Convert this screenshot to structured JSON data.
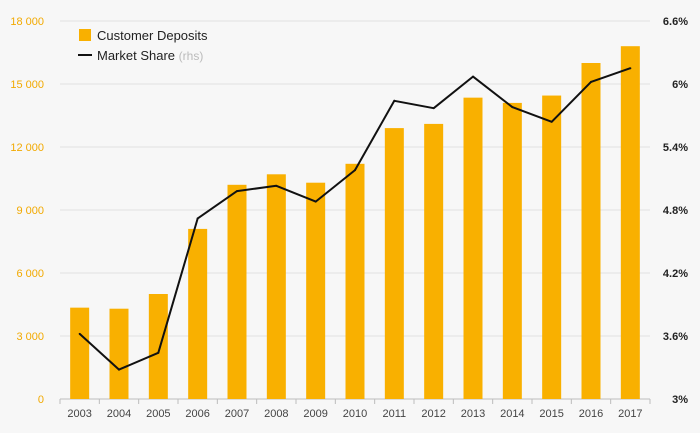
{
  "chart_data": {
    "type": "bar",
    "categories": [
      "2003",
      "2004",
      "2005",
      "2006",
      "2007",
      "2008",
      "2009",
      "2010",
      "2011",
      "2012",
      "2013",
      "2014",
      "2015",
      "2016",
      "2017"
    ],
    "series": [
      {
        "name": "Customer Deposits",
        "type": "bar",
        "axis": "left",
        "color": "#f9b000",
        "values": [
          4350,
          4300,
          5000,
          8100,
          10200,
          10700,
          10300,
          11200,
          12900,
          13100,
          14350,
          14100,
          14450,
          16000,
          16800
        ]
      },
      {
        "name": "Market Share",
        "type": "line",
        "axis": "right",
        "color": "#111111",
        "values": [
          3.62,
          3.28,
          3.44,
          4.72,
          4.98,
          5.03,
          4.88,
          5.18,
          5.84,
          5.77,
          6.07,
          5.78,
          5.64,
          6.02,
          6.15
        ]
      }
    ],
    "legend": {
      "position": "top-left",
      "items": [
        {
          "label": "Customer Deposits",
          "suffix": ""
        },
        {
          "label": "Market Share",
          "suffix": "(rhs)"
        }
      ]
    },
    "left_axis": {
      "ylim": [
        0,
        18000
      ],
      "ticks": [
        0,
        3000,
        6000,
        9000,
        12000,
        15000,
        18000
      ],
      "tick_labels": [
        "0",
        "3 000",
        "6 000",
        "9 000",
        "12 000",
        "15 000",
        "18 000"
      ],
      "color": "#f2a900"
    },
    "right_axis": {
      "ylim": [
        3,
        6.6
      ],
      "ticks": [
        3,
        3.6,
        4.2,
        4.8,
        5.4,
        6,
        6.6
      ],
      "tick_labels": [
        "3%",
        "3.6%",
        "4.2%",
        "4.8%",
        "5.4%",
        "6%",
        "6.6%"
      ]
    },
    "grid": true
  }
}
